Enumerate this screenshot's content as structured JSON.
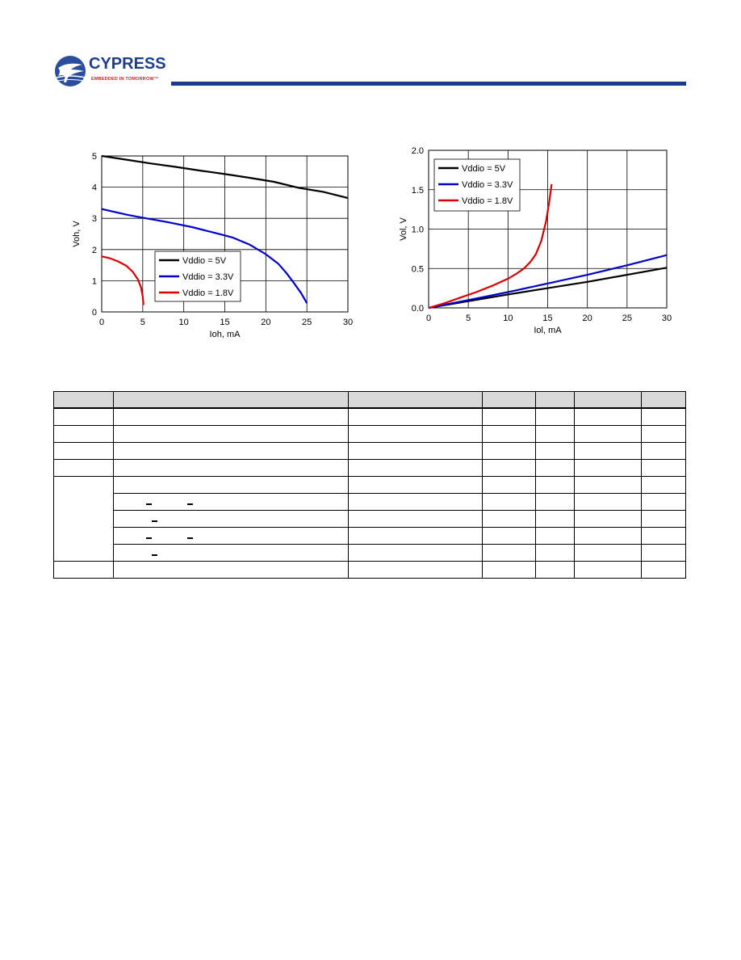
{
  "header": {
    "logo_text": "CYPRESS",
    "logo_tagline": "EMBEDDED IN TOMORROW™",
    "bar_color": "#1a3a8c"
  },
  "charts": {
    "voh": {
      "type": "line",
      "xlabel": "Ioh, mA",
      "ylabel": "Voh, V",
      "xlim": [
        0,
        30
      ],
      "ylim": [
        0,
        5
      ],
      "xticks": [
        "0",
        "5",
        "10",
        "15",
        "20",
        "25",
        "30"
      ],
      "yticks": [
        "0",
        "1",
        "2",
        "3",
        "4",
        "5"
      ],
      "grid": true,
      "legend_position": "lower-middle",
      "series": [
        {
          "name": "Vddio = 5V",
          "color": "#000000",
          "points": [
            [
              0,
              5.0
            ],
            [
              3,
              4.88
            ],
            [
              6,
              4.76
            ],
            [
              9,
              4.65
            ],
            [
              12,
              4.53
            ],
            [
              15,
              4.42
            ],
            [
              18,
              4.3
            ],
            [
              21,
              4.17
            ],
            [
              24,
              3.98
            ],
            [
              27,
              3.85
            ],
            [
              30,
              3.65
            ]
          ]
        },
        {
          "name": "Vddio = 3.3V",
          "color": "#0000cc",
          "points": [
            [
              0,
              3.3
            ],
            [
              3,
              3.12
            ],
            [
              5,
              3.02
            ],
            [
              8,
              2.88
            ],
            [
              11,
              2.72
            ],
            [
              14,
              2.52
            ],
            [
              16,
              2.38
            ],
            [
              18,
              2.16
            ],
            [
              20,
              1.85
            ],
            [
              21.5,
              1.55
            ],
            [
              22.5,
              1.25
            ],
            [
              23.5,
              0.9
            ],
            [
              24.3,
              0.6
            ],
            [
              25,
              0.28
            ]
          ]
        },
        {
          "name": "Vddio = 1.8V",
          "color": "#dd0000",
          "points": [
            [
              0,
              1.78
            ],
            [
              1,
              1.72
            ],
            [
              2,
              1.62
            ],
            [
              3,
              1.48
            ],
            [
              3.8,
              1.28
            ],
            [
              4.4,
              1.05
            ],
            [
              4.8,
              0.78
            ],
            [
              5.0,
              0.5
            ],
            [
              5.1,
              0.22
            ]
          ]
        }
      ]
    },
    "vol": {
      "type": "line",
      "xlabel": "Iol, mA",
      "ylabel": "Vol, V",
      "xlim": [
        0,
        30
      ],
      "ylim": [
        0,
        2
      ],
      "xticks": [
        "0",
        "5",
        "10",
        "15",
        "20",
        "25",
        "30"
      ],
      "yticks": [
        "0.0",
        "0.5",
        "1.0",
        "1.5",
        "2.0"
      ],
      "grid": true,
      "legend_position": "top-left",
      "series": [
        {
          "name": "Vddio = 5V",
          "color": "#000000",
          "points": [
            [
              0,
              0
            ],
            [
              5,
              0.085
            ],
            [
              10,
              0.17
            ],
            [
              15,
              0.25
            ],
            [
              20,
              0.33
            ],
            [
              25,
              0.42
            ],
            [
              30,
              0.51
            ]
          ]
        },
        {
          "name": "Vddio = 3.3V",
          "color": "#0000cc",
          "points": [
            [
              0,
              0
            ],
            [
              5,
              0.1
            ],
            [
              10,
              0.2
            ],
            [
              15,
              0.31
            ],
            [
              20,
              0.42
            ],
            [
              25,
              0.54
            ],
            [
              30,
              0.67
            ]
          ]
        },
        {
          "name": "Vddio = 1.8V",
          "color": "#dd0000",
          "points": [
            [
              0,
              0
            ],
            [
              2,
              0.06
            ],
            [
              4,
              0.13
            ],
            [
              6,
              0.2
            ],
            [
              8,
              0.28
            ],
            [
              10,
              0.37
            ],
            [
              11,
              0.43
            ],
            [
              12,
              0.5
            ],
            [
              12.8,
              0.58
            ],
            [
              13.5,
              0.68
            ],
            [
              14.2,
              0.85
            ],
            [
              14.8,
              1.1
            ],
            [
              15.2,
              1.35
            ],
            [
              15.5,
              1.57
            ]
          ]
        }
      ]
    }
  },
  "table": {
    "headers": [
      "",
      "",
      "",
      "",
      "",
      "",
      ""
    ],
    "rows": [
      [
        "",
        "",
        "",
        "",
        "",
        "",
        ""
      ],
      [
        "",
        "",
        "",
        "",
        "",
        "",
        ""
      ],
      [
        "",
        "",
        "",
        "",
        "",
        "",
        ""
      ],
      [
        "",
        "",
        "",
        "",
        "",
        "",
        ""
      ],
      [
        "",
        "",
        "",
        "",
        "",
        "",
        ""
      ],
      [
        "",
        "",
        "",
        "",
        "",
        "",
        ""
      ],
      [
        "",
        "",
        "",
        "",
        "",
        "",
        ""
      ],
      [
        "",
        "",
        "",
        "",
        "",
        "",
        ""
      ],
      [
        "",
        "",
        "",
        "",
        "",
        "",
        ""
      ],
      [
        "",
        "",
        "",
        "",
        "",
        "",
        ""
      ]
    ]
  }
}
